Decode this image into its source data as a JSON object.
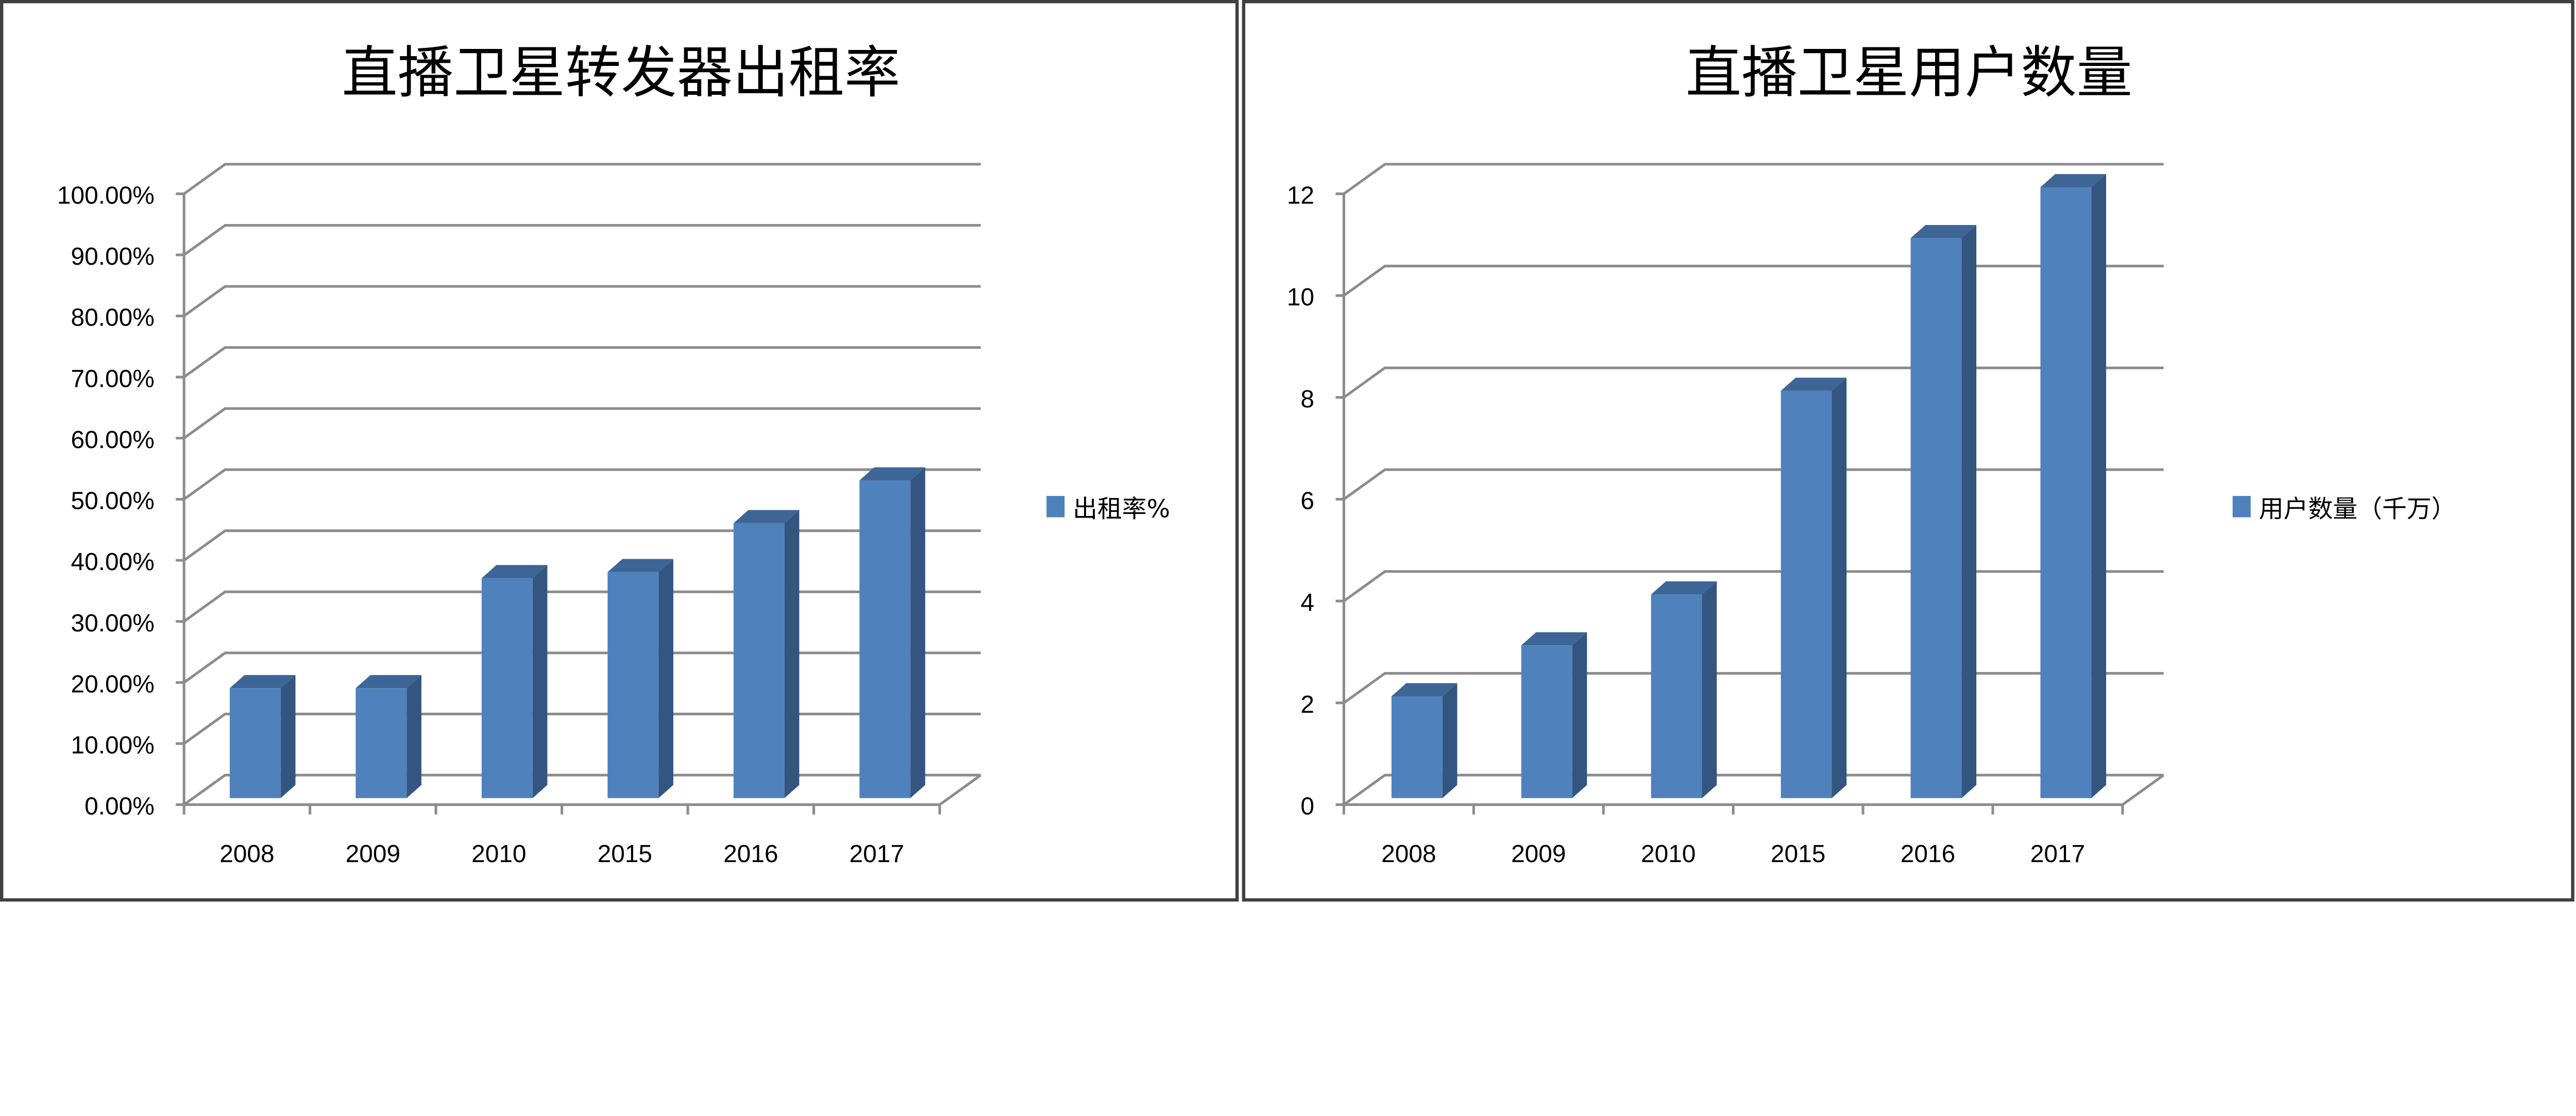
{
  "colors": {
    "bar_front": "#4f81bd",
    "bar_side": "#33557f",
    "bar_top": "#3d6596",
    "grid": "#8c8c8c",
    "panel_border": "#404040"
  },
  "chart_data": [
    {
      "type": "bar",
      "title": "直播卫星转发器出租率",
      "categories": [
        "2008",
        "2009",
        "2010",
        "2015",
        "2016",
        "2017"
      ],
      "series": [
        {
          "name": "出租率%",
          "values": [
            0.18,
            0.18,
            0.36,
            0.37,
            0.45,
            0.52
          ]
        }
      ],
      "yticks": [
        "0.00%",
        "10.00%",
        "20.00%",
        "30.00%",
        "40.00%",
        "50.00%",
        "60.00%",
        "70.00%",
        "80.00%",
        "90.00%",
        "100.00%"
      ],
      "ylim": [
        0,
        1
      ],
      "grid": true,
      "legend": "right",
      "style": "3d-column"
    },
    {
      "type": "bar",
      "title": "直播卫星用户数量",
      "categories": [
        "2008",
        "2009",
        "2010",
        "2015",
        "2016",
        "2017"
      ],
      "series": [
        {
          "name": "用户数量（千万）",
          "values": [
            2,
            3,
            4,
            8,
            11,
            12
          ]
        }
      ],
      "yticks": [
        "0",
        "2",
        "4",
        "6",
        "8",
        "10",
        "12"
      ],
      "ylim": [
        0,
        12
      ],
      "grid": true,
      "legend": "right",
      "style": "3d-column"
    }
  ]
}
